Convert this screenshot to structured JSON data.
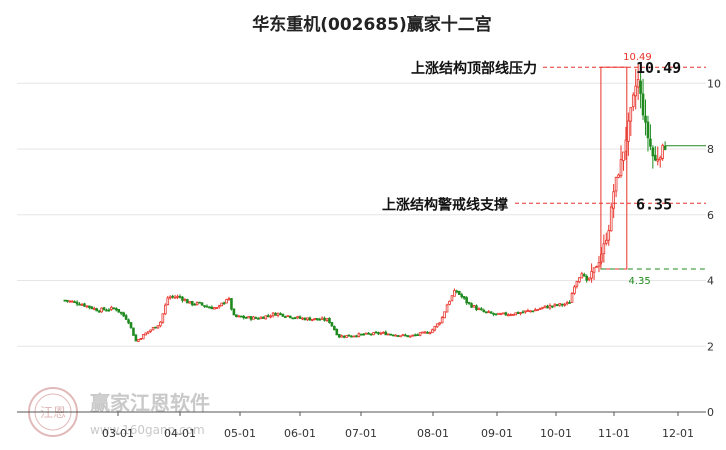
{
  "chart_data": {
    "type": "candlestick",
    "title": "华东重机(002685)赢家十二宫",
    "x_ticks": [
      "03-01",
      "04-01",
      "05-01",
      "06-01",
      "07-01",
      "08-01",
      "09-01",
      "10-01",
      "11-01",
      "12-01"
    ],
    "y_ticks": [
      0,
      2,
      4,
      6,
      8,
      10
    ],
    "ylim": [
      0,
      10.8
    ],
    "grid": true,
    "colors": {
      "up": "#e8332a",
      "down": "#1f8a1f",
      "resistance": "#e8332a",
      "support": "#e8332a",
      "low_line": "#1f8a1f",
      "box": "#e8332a"
    },
    "price_path": [
      [
        "02-05",
        3.4
      ],
      [
        "02-12",
        3.3
      ],
      [
        "02-20",
        3.1
      ],
      [
        "02-28",
        3.15
      ],
      [
        "03-06",
        2.8
      ],
      [
        "03-10",
        2.15
      ],
      [
        "03-15",
        2.4
      ],
      [
        "03-22",
        2.7
      ],
      [
        "03-26",
        3.5
      ],
      [
        "04-01",
        3.5
      ],
      [
        "04-06",
        3.3
      ],
      [
        "04-10",
        3.3
      ],
      [
        "04-15",
        3.2
      ],
      [
        "04-20",
        3.15
      ],
      [
        "04-25",
        3.5
      ],
      [
        "04-28",
        2.9
      ],
      [
        "05-10",
        2.85
      ],
      [
        "05-20",
        3.0
      ],
      [
        "06-01",
        2.85
      ],
      [
        "06-15",
        2.8
      ],
      [
        "06-20",
        2.3
      ],
      [
        "07-01",
        2.35
      ],
      [
        "07-10",
        2.4
      ],
      [
        "07-22",
        2.3
      ],
      [
        "07-31",
        2.45
      ],
      [
        "08-05",
        2.8
      ],
      [
        "08-08",
        3.3
      ],
      [
        "08-12",
        3.7
      ],
      [
        "08-18",
        3.3
      ],
      [
        "08-25",
        3.05
      ],
      [
        "09-01",
        2.95
      ],
      [
        "09-10",
        3.0
      ],
      [
        "09-20",
        3.1
      ],
      [
        "09-26",
        3.2
      ],
      [
        "10-08",
        3.3
      ],
      [
        "10-11",
        3.9
      ],
      [
        "10-15",
        4.3
      ],
      [
        "10-17",
        3.9
      ],
      [
        "10-24",
        4.6
      ],
      [
        "10-29",
        5.5
      ],
      [
        "11-01",
        6.8
      ],
      [
        "11-04",
        7.5
      ],
      [
        "11-08",
        8.8
      ],
      [
        "11-12",
        10.2
      ],
      [
        "11-16",
        8.6
      ],
      [
        "11-20",
        7.6
      ],
      [
        "11-25",
        8.1
      ]
    ],
    "annotations": {
      "resistance_label": "上涨结构顶部线压力",
      "resistance_value": "10.49",
      "resistance_price": 10.49,
      "support_label": "上涨结构警戒线支撑",
      "support_value": "6.35",
      "support_price": 6.35,
      "high_marker": "10.49",
      "low_marker": "4.35",
      "low_price": 4.35,
      "box_start": "10-25",
      "box_end": "11-07",
      "current_price": 8.1
    },
    "watermark": {
      "text": "赢家江恩软件",
      "url": "www.160gann.com",
      "seal_text": "江恩"
    }
  }
}
